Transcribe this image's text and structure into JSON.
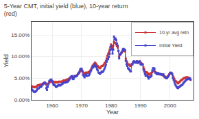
{
  "chart_data": {
    "type": "line",
    "title": "5-Year CMT, initial yield (blue), 10-year return\n(red)",
    "xlabel": "Year",
    "ylabel": "Yield",
    "x": [
      1953.0,
      1953.25,
      1953.5,
      1953.75,
      1954.0,
      1954.25,
      1954.5,
      1954.75,
      1955.0,
      1955.25,
      1955.5,
      1955.75,
      1956.0,
      1956.25,
      1956.5,
      1956.75,
      1957.0,
      1957.25,
      1957.5,
      1957.75,
      1958.0,
      1958.25,
      1958.5,
      1958.75,
      1959.0,
      1959.25,
      1959.5,
      1959.75,
      1960.0,
      1960.25,
      1960.5,
      1960.75,
      1961.0,
      1961.25,
      1961.5,
      1961.75,
      1962.0,
      1962.25,
      1962.5,
      1962.75,
      1963.0,
      1963.25,
      1963.5,
      1963.75,
      1964.0,
      1964.25,
      1964.5,
      1964.75,
      1965.0,
      1965.25,
      1965.5,
      1965.75,
      1966.0,
      1966.25,
      1966.5,
      1966.75,
      1967.0,
      1967.25,
      1967.5,
      1967.75,
      1968.0,
      1968.25,
      1968.5,
      1968.75,
      1969.0,
      1969.25,
      1969.5,
      1969.75,
      1970.0,
      1970.25,
      1970.5,
      1970.75,
      1971.0,
      1971.25,
      1971.5,
      1971.75,
      1972.0,
      1972.25,
      1972.5,
      1972.75,
      1973.0,
      1973.25,
      1973.5,
      1973.75,
      1974.0,
      1974.25,
      1974.5,
      1974.75,
      1975.0,
      1975.25,
      1975.5,
      1975.75,
      1976.0,
      1976.25,
      1976.5,
      1976.75,
      1977.0,
      1977.25,
      1977.5,
      1977.75,
      1978.0,
      1978.25,
      1978.5,
      1978.75,
      1979.0,
      1979.25,
      1979.5,
      1979.75,
      1980.0,
      1980.25,
      1980.5,
      1980.75,
      1981.0,
      1981.25,
      1981.5,
      1981.75,
      1982.0,
      1982.25,
      1982.5,
      1982.75,
      1983.0,
      1983.25,
      1983.5,
      1983.75,
      1984.0,
      1984.25,
      1984.5,
      1984.75,
      1985.0,
      1985.25,
      1985.5,
      1985.75,
      1986.0,
      1986.25,
      1986.5,
      1986.75,
      1987.0,
      1987.25,
      1987.5,
      1987.75,
      1988.0,
      1988.25,
      1988.5,
      1988.75,
      1989.0,
      1989.25,
      1989.5,
      1989.75,
      1990.0,
      1990.25,
      1990.5,
      1990.75,
      1991.0,
      1991.25,
      1991.5,
      1991.75,
      1992.0,
      1992.25,
      1992.5,
      1992.75,
      1993.0,
      1993.25,
      1993.5,
      1993.75,
      1994.0,
      1994.25,
      1994.5,
      1994.75,
      1995.0,
      1995.25,
      1995.5,
      1995.75,
      1996.0,
      1996.25,
      1996.5,
      1996.75,
      1997.0,
      1997.25,
      1997.5,
      1997.75,
      1998.0,
      1998.25,
      1998.5,
      1998.75,
      1999.0,
      1999.25,
      1999.5,
      1999.75,
      2000.0,
      2000.25,
      2000.5,
      2000.75,
      2001.0,
      2001.25,
      2001.5,
      2001.75,
      2002.0,
      2002.25,
      2002.5,
      2002.75,
      2003.0,
      2003.25,
      2003.5,
      2003.75,
      2004.0,
      2004.25,
      2004.5,
      2004.75,
      2005.0,
      2005.25,
      2005.5,
      2005.75,
      2006.0,
      2006.25,
      2006.5,
      2006.75,
      2007.0
    ],
    "series": [
      {
        "name": "10-yr avg retn",
        "color": "#cc3333",
        "marker": "square",
        "values": [
          0.031,
          0.031,
          0.03,
          0.03,
          0.029,
          0.029,
          0.03,
          0.031,
          0.033,
          0.034,
          0.034,
          0.035,
          0.035,
          0.035,
          0.036,
          0.037,
          0.038,
          0.039,
          0.039,
          0.038,
          0.036,
          0.035,
          0.036,
          0.038,
          0.04,
          0.041,
          0.042,
          0.043,
          0.043,
          0.042,
          0.041,
          0.041,
          0.041,
          0.041,
          0.04,
          0.041,
          0.041,
          0.042,
          0.042,
          0.042,
          0.042,
          0.042,
          0.043,
          0.044,
          0.045,
          0.045,
          0.045,
          0.046,
          0.046,
          0.047,
          0.048,
          0.049,
          0.05,
          0.051,
          0.053,
          0.054,
          0.053,
          0.053,
          0.054,
          0.055,
          0.055,
          0.056,
          0.057,
          0.059,
          0.061,
          0.063,
          0.066,
          0.068,
          0.069,
          0.067,
          0.063,
          0.061,
          0.06,
          0.062,
          0.063,
          0.062,
          0.063,
          0.063,
          0.064,
          0.066,
          0.068,
          0.071,
          0.075,
          0.079,
          0.081,
          0.083,
          0.086,
          0.084,
          0.082,
          0.079,
          0.078,
          0.075,
          0.074,
          0.073,
          0.075,
          0.078,
          0.078,
          0.079,
          0.081,
          0.084,
          0.086,
          0.09,
          0.096,
          0.102,
          0.106,
          0.11,
          0.116,
          0.122,
          0.128,
          0.124,
          0.119,
          0.125,
          0.134,
          0.132,
          0.131,
          0.128,
          0.124,
          0.121,
          0.113,
          0.1,
          0.104,
          0.106,
          0.108,
          0.11,
          0.113,
          0.114,
          0.113,
          0.112,
          0.095,
          0.089,
          0.086,
          0.082,
          0.082,
          0.08,
          0.078,
          0.078,
          0.082,
          0.083,
          0.087,
          0.088,
          0.087,
          0.087,
          0.088,
          0.089,
          0.087,
          0.087,
          0.088,
          0.088,
          0.086,
          0.085,
          0.083,
          0.082,
          0.075,
          0.071,
          0.066,
          0.062,
          0.064,
          0.063,
          0.061,
          0.058,
          0.059,
          0.06,
          0.061,
          0.062,
          0.064,
          0.067,
          0.068,
          0.067,
          0.064,
          0.063,
          0.061,
          0.06,
          0.061,
          0.06,
          0.059,
          0.059,
          0.059,
          0.058,
          0.057,
          0.057,
          0.055,
          0.054,
          0.052,
          0.052,
          0.052,
          0.054,
          0.056,
          0.059,
          0.061,
          0.062,
          0.062,
          0.059,
          0.055,
          0.052,
          0.048,
          0.044,
          0.043,
          0.041,
          0.04,
          0.038,
          0.04,
          0.041,
          0.043,
          0.045,
          0.046,
          0.047,
          0.049,
          0.05,
          0.051,
          0.051,
          0.052,
          0.052,
          0.052,
          0.051,
          0.05,
          0.049,
          0.046
        ]
      },
      {
        "name": "Initial Yield",
        "color": "#4444cc",
        "marker": "square",
        "values": [
          0.026,
          0.023,
          0.021,
          0.019,
          0.018,
          0.019,
          0.02,
          0.022,
          0.025,
          0.026,
          0.027,
          0.03,
          0.03,
          0.03,
          0.033,
          0.035,
          0.037,
          0.039,
          0.04,
          0.038,
          0.027,
          0.023,
          0.03,
          0.036,
          0.043,
          0.045,
          0.046,
          0.047,
          0.043,
          0.038,
          0.034,
          0.035,
          0.033,
          0.03,
          0.03,
          0.032,
          0.033,
          0.035,
          0.034,
          0.033,
          0.035,
          0.036,
          0.037,
          0.039,
          0.04,
          0.04,
          0.04,
          0.041,
          0.041,
          0.042,
          0.044,
          0.046,
          0.049,
          0.052,
          0.054,
          0.055,
          0.048,
          0.048,
          0.052,
          0.055,
          0.054,
          0.055,
          0.056,
          0.06,
          0.062,
          0.065,
          0.07,
          0.072,
          0.072,
          0.066,
          0.058,
          0.055,
          0.052,
          0.057,
          0.059,
          0.055,
          0.056,
          0.056,
          0.057,
          0.06,
          0.065,
          0.068,
          0.073,
          0.077,
          0.075,
          0.078,
          0.082,
          0.078,
          0.075,
          0.07,
          0.068,
          0.063,
          0.062,
          0.06,
          0.062,
          0.065,
          0.064,
          0.065,
          0.068,
          0.072,
          0.076,
          0.081,
          0.088,
          0.093,
          0.094,
          0.099,
          0.106,
          0.115,
          0.124,
          0.117,
          0.107,
          0.116,
          0.146,
          0.14,
          0.142,
          0.138,
          0.13,
          0.125,
          0.113,
          0.096,
          0.104,
          0.106,
          0.109,
          0.112,
          0.117,
          0.118,
          0.116,
          0.115,
          0.09,
          0.082,
          0.078,
          0.073,
          0.072,
          0.069,
          0.066,
          0.066,
          0.082,
          0.082,
          0.087,
          0.089,
          0.086,
          0.086,
          0.087,
          0.089,
          0.085,
          0.086,
          0.088,
          0.089,
          0.082,
          0.082,
          0.082,
          0.081,
          0.07,
          0.065,
          0.059,
          0.055,
          0.057,
          0.056,
          0.053,
          0.049,
          0.052,
          0.053,
          0.054,
          0.056,
          0.068,
          0.073,
          0.073,
          0.072,
          0.063,
          0.062,
          0.06,
          0.059,
          0.062,
          0.06,
          0.059,
          0.06,
          0.059,
          0.058,
          0.058,
          0.059,
          0.054,
          0.053,
          0.051,
          0.05,
          0.05,
          0.053,
          0.055,
          0.058,
          0.062,
          0.063,
          0.062,
          0.06,
          0.05,
          0.046,
          0.041,
          0.036,
          0.033,
          0.03,
          0.028,
          0.027,
          0.029,
          0.03,
          0.032,
          0.033,
          0.034,
          0.035,
          0.038,
          0.04,
          0.042,
          0.044,
          0.046,
          0.047,
          0.048,
          0.048,
          0.049,
          0.05,
          0.047
        ]
      }
    ],
    "xlim": [
      1953,
      2008
    ],
    "ylim": [
      0.0,
      0.18
    ],
    "xticks": [
      1960,
      1970,
      1980,
      1990,
      2000
    ],
    "yticks": [
      {
        "value": 0.0,
        "label": "0.00%"
      },
      {
        "value": 0.05,
        "label": "5.00%"
      },
      {
        "value": 0.1,
        "label": "10.00%"
      },
      {
        "value": 0.15,
        "label": "15.00%"
      }
    ],
    "grid": true,
    "legend": "upper right"
  }
}
